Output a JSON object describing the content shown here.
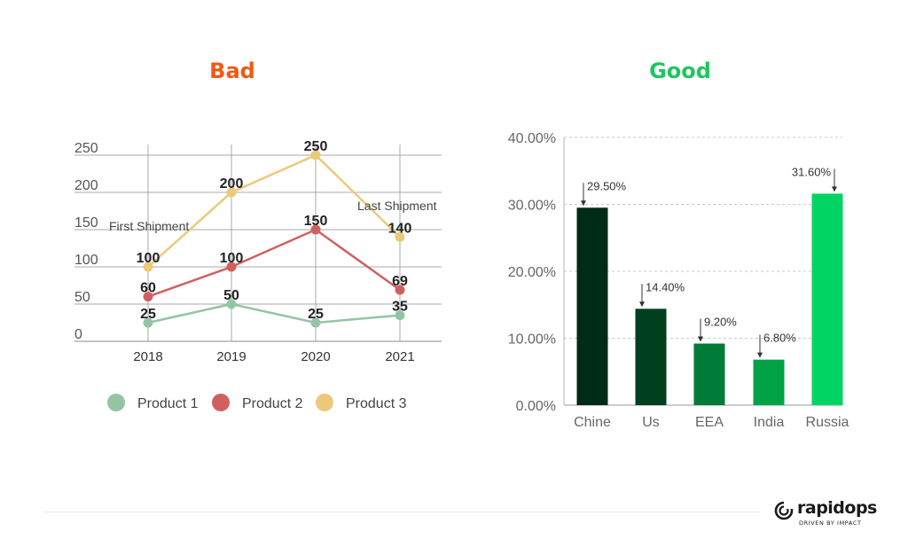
{
  "colors": {
    "bad": "#f15a13",
    "good": "#1fc65f",
    "product1": "#93c5a4",
    "product2": "#d06060",
    "product3": "#ecc97a",
    "bars": [
      "#002b18",
      "#00401f",
      "#007a37",
      "#00a246",
      "#00d563"
    ]
  },
  "headings": {
    "bad": "Bad",
    "good": "Good"
  },
  "chart_data": [
    {
      "type": "line",
      "categories": [
        "2018",
        "2019",
        "2020",
        "2021"
      ],
      "ylim": [
        0,
        250
      ],
      "yticks": [
        "0",
        "50",
        "100",
        "150",
        "200",
        "250"
      ],
      "series": [
        {
          "name": "Product 1",
          "values": [
            25,
            50,
            25,
            35
          ],
          "labels": [
            "25",
            "50",
            "25",
            "35"
          ]
        },
        {
          "name": "Product 2",
          "values": [
            60,
            100,
            150,
            69
          ],
          "labels": [
            "60",
            "100",
            "150",
            "69"
          ]
        },
        {
          "name": "Product 3",
          "values": [
            100,
            200,
            250,
            140
          ],
          "labels": [
            "100",
            "200",
            "250",
            "140"
          ]
        }
      ],
      "annotations": [
        {
          "text": "First Shipment",
          "category": "2018"
        },
        {
          "text": "Last Shipment",
          "category": "2021"
        }
      ],
      "grid": true,
      "legend": "bottom"
    },
    {
      "type": "bar",
      "categories": [
        "Chine",
        "Us",
        "EEA",
        "India",
        "Russia"
      ],
      "values": [
        29.5,
        14.4,
        9.2,
        6.8,
        31.6
      ],
      "labels": [
        "29.50%",
        "14.40%",
        "9.20%",
        "6.80%",
        "31.60%"
      ],
      "ylim": [
        0,
        40
      ],
      "yticks": [
        "0.00%",
        "10.00%",
        "20.00%",
        "30.00%",
        "40.00%"
      ],
      "grid": true
    }
  ],
  "logo": {
    "word": "rapidops",
    "tagline": "DRIVEN BY IMPACT"
  }
}
